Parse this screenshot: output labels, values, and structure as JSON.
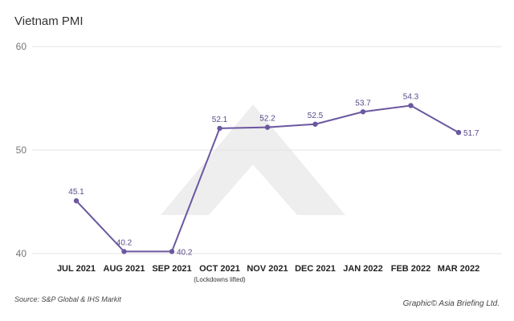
{
  "chart_data": {
    "type": "line",
    "title": "Vietnam PMI",
    "categories": [
      "JUL 2021",
      "AUG 2021",
      "SEP 2021",
      "OCT 2021",
      "NOV 2021",
      "DEC 2021",
      "JAN 2022",
      "FEB 2022",
      "MAR 2022"
    ],
    "category_notes": [
      "",
      "",
      "",
      "(Lockdowns lifted)",
      "",
      "",
      "",
      "",
      ""
    ],
    "series": [
      {
        "values": [
          45.1,
          40.2,
          40.2,
          52.1,
          52.2,
          52.5,
          53.7,
          54.3,
          51.7
        ]
      }
    ],
    "data_labels": [
      "45.1",
      "40.2",
      "40.2",
      "52.1",
      "52.2",
      "52.5",
      "53.7",
      "54.3",
      "51.7"
    ],
    "ylim": [
      40,
      60
    ],
    "yticks": [
      "40",
      "50",
      "60"
    ],
    "grid": true,
    "line_color": "#6b57a0",
    "xlabel": "",
    "ylabel": ""
  },
  "footer": {
    "source": "Source: S&P Global & IHS Markit",
    "credit": "Graphic© Asia Briefing Ltd."
  }
}
